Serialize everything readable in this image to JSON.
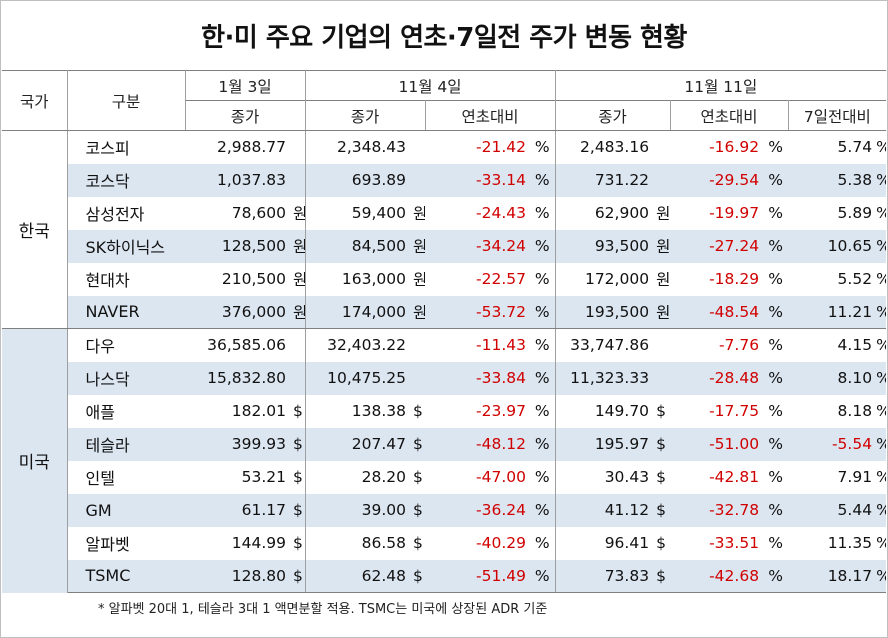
{
  "title": "한·미 주요 기업의 연초·7일전 주가 변동 현황",
  "headers": {
    "country": "국가",
    "category": "구분",
    "date1": "1월 3일",
    "date2": "11월 4일",
    "date3": "11월 11일",
    "close": "종가",
    "vs_start": "연초대비",
    "vs_7days": "7일전대비"
  },
  "countries": {
    "korea": "한국",
    "usa": "미국"
  },
  "rows": [
    {
      "name": "코스피",
      "v1": "2,988.77",
      "u1": "",
      "v2": "2,348.43",
      "u2": "",
      "c2": "-21.42",
      "p2": "%",
      "v3": "2,483.16",
      "u3": "",
      "c3": "-16.92",
      "p3": "%",
      "w3": "5.74",
      "q3": "%"
    },
    {
      "name": "코스닥",
      "v1": "1,037.83",
      "u1": "",
      "v2": "693.89",
      "u2": "",
      "c2": "-33.14",
      "p2": "%",
      "v3": "731.22",
      "u3": "",
      "c3": "-29.54",
      "p3": "%",
      "w3": "5.38",
      "q3": "%"
    },
    {
      "name": "삼성전자",
      "v1": "78,600",
      "u1": "원",
      "v2": "59,400",
      "u2": "원",
      "c2": "-24.43",
      "p2": "%",
      "v3": "62,900",
      "u3": "원",
      "c3": "-19.97",
      "p3": "%",
      "w3": "5.89",
      "q3": "%"
    },
    {
      "name": "SK하이닉스",
      "v1": "128,500",
      "u1": "원",
      "v2": "84,500",
      "u2": "원",
      "c2": "-34.24",
      "p2": "%",
      "v3": "93,500",
      "u3": "원",
      "c3": "-27.24",
      "p3": "%",
      "w3": "10.65",
      "q3": "%"
    },
    {
      "name": "현대차",
      "v1": "210,500",
      "u1": "원",
      "v2": "163,000",
      "u2": "원",
      "c2": "-22.57",
      "p2": "%",
      "v3": "172,000",
      "u3": "원",
      "c3": "-18.29",
      "p3": "%",
      "w3": "5.52",
      "q3": "%"
    },
    {
      "name": "NAVER",
      "v1": "376,000",
      "u1": "원",
      "v2": "174,000",
      "u2": "원",
      "c2": "-53.72",
      "p2": "%",
      "v3": "193,500",
      "u3": "원",
      "c3": "-48.54",
      "p3": "%",
      "w3": "11.21",
      "q3": "%"
    },
    {
      "name": "다우",
      "v1": "36,585.06",
      "u1": "",
      "v2": "32,403.22",
      "u2": "",
      "c2": "-11.43",
      "p2": "%",
      "v3": "33,747.86",
      "u3": "",
      "c3": "-7.76",
      "p3": "%",
      "w3": "4.15",
      "q3": "%"
    },
    {
      "name": "나스닥",
      "v1": "15,832.80",
      "u1": "",
      "v2": "10,475.25",
      "u2": "",
      "c2": "-33.84",
      "p2": "%",
      "v3": "11,323.33",
      "u3": "",
      "c3": "-28.48",
      "p3": "%",
      "w3": "8.10",
      "q3": "%"
    },
    {
      "name": "애플",
      "v1": "182.01",
      "u1": "$",
      "v2": "138.38",
      "u2": "$",
      "c2": "-23.97",
      "p2": "%",
      "v3": "149.70",
      "u3": "$",
      "c3": "-17.75",
      "p3": "%",
      "w3": "8.18",
      "q3": "%"
    },
    {
      "name": "테슬라",
      "v1": "399.93",
      "u1": "$",
      "v2": "207.47",
      "u2": "$",
      "c2": "-48.12",
      "p2": "%",
      "v3": "195.97",
      "u3": "$",
      "c3": "-51.00",
      "p3": "%",
      "w3": "-5.54",
      "q3": "%"
    },
    {
      "name": "인텔",
      "v1": "53.21",
      "u1": "$",
      "v2": "28.20",
      "u2": "$",
      "c2": "-47.00",
      "p2": "%",
      "v3": "30.43",
      "u3": "$",
      "c3": "-42.81",
      "p3": "%",
      "w3": "7.91",
      "q3": "%"
    },
    {
      "name": "GM",
      "v1": "61.17",
      "u1": "$",
      "v2": "39.00",
      "u2": "$",
      "c2": "-36.24",
      "p2": "%",
      "v3": "41.12",
      "u3": "$",
      "c3": "-32.78",
      "p3": "%",
      "w3": "5.44",
      "q3": "%"
    },
    {
      "name": "알파벳",
      "v1": "144.99",
      "u1": "$",
      "v2": "86.58",
      "u2": "$",
      "c2": "-40.29",
      "p2": "%",
      "v3": "96.41",
      "u3": "$",
      "c3": "-33.51",
      "p3": "%",
      "w3": "11.35",
      "q3": "%"
    },
    {
      "name": "TSMC",
      "v1": "128.80",
      "u1": "$",
      "v2": "62.48",
      "u2": "$",
      "c2": "-51.49",
      "p2": "%",
      "v3": "73.83",
      "u3": "$",
      "c3": "-42.68",
      "p3": "%",
      "w3": "18.17",
      "q3": "%"
    }
  ],
  "note": "* 알파벳 20대 1, 테슬라 3대 1 액면분할 적용. TSMC는 미국에 상장된 ADR 기준",
  "colors": {
    "negative": "#d00000",
    "row_shade": "#dce6f1"
  }
}
